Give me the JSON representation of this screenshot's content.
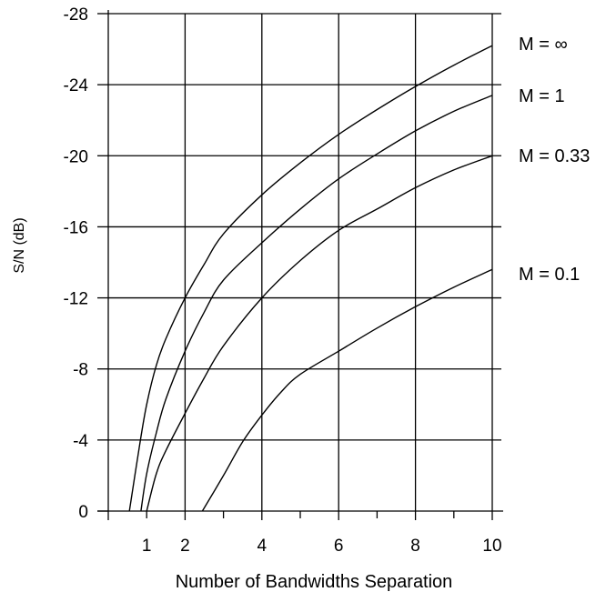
{
  "chart_data": {
    "type": "line",
    "title": "",
    "xlabel": "Number of Bandwidths Separation",
    "ylabel": "S/N (dB)",
    "xlim": [
      0,
      10
    ],
    "ylim": [
      0,
      -28
    ],
    "x_ticks": [
      "1",
      "2",
      "4",
      "6",
      "8",
      "10"
    ],
    "x_tick_values": [
      1,
      2,
      4,
      6,
      8,
      10
    ],
    "y_ticks": [
      "-28",
      "-24",
      "-20",
      "-16",
      "-12",
      "-8",
      "-4",
      "0"
    ],
    "y_tick_values": [
      -28,
      -24,
      -20,
      -16,
      -12,
      -8,
      -4,
      0
    ],
    "grid": true,
    "series": [
      {
        "name": "M = ∞",
        "x": [
          0.55,
          0.8,
          1.0,
          1.25,
          1.5,
          2.0,
          2.5,
          3.0,
          4.0,
          5.0,
          6.0,
          7.0,
          8.0,
          9.0,
          10.0
        ],
        "y": [
          0,
          -3.5,
          -6,
          -8.2,
          -9.7,
          -12,
          -13.9,
          -15.6,
          -17.8,
          -19.6,
          -21.2,
          -22.6,
          -23.9,
          -25.1,
          -26.2
        ]
      },
      {
        "name": "M = 1",
        "x": [
          0.85,
          1.0,
          1.25,
          1.5,
          2.0,
          2.5,
          3.0,
          4.0,
          5.0,
          6.0,
          7.0,
          8.0,
          9.0,
          10.0
        ],
        "y": [
          0,
          -2.1,
          -4.4,
          -6.3,
          -9.0,
          -11.2,
          -13.0,
          -15.1,
          -17.0,
          -18.7,
          -20.1,
          -21.4,
          -22.5,
          -23.4
        ]
      },
      {
        "name": "M = 0.33",
        "x": [
          1.0,
          1.25,
          1.5,
          2.0,
          2.5,
          3.0,
          4.0,
          5.0,
          6.0,
          7.0,
          8.0,
          9.0,
          10.0
        ],
        "y": [
          0,
          -2.1,
          -3.4,
          -5.5,
          -7.5,
          -9.3,
          -12.0,
          -14.1,
          -15.8,
          -17.0,
          -18.2,
          -19.2,
          -20.0
        ]
      },
      {
        "name": "M = 0.1",
        "x": [
          2.45,
          3.0,
          3.5,
          4.0,
          4.5,
          5.0,
          6.0,
          7.0,
          8.0,
          9.0,
          10.0
        ],
        "y": [
          0,
          -2.0,
          -3.9,
          -5.4,
          -6.7,
          -7.7,
          -9.0,
          -10.3,
          -11.5,
          -12.6,
          -13.6
        ]
      }
    ]
  }
}
